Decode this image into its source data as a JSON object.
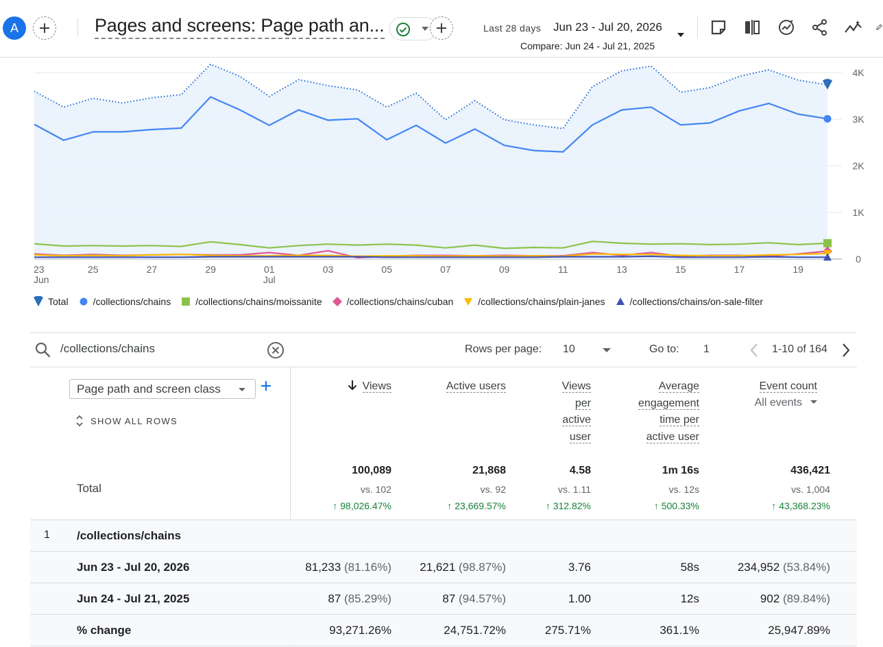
{
  "header": {
    "avatar_letter": "A",
    "report_title": "Pages and screens: Page path an...",
    "date_label": "Last 28 days",
    "date_range": "Jun 23 - Jul 20, 2026",
    "compare": "Compare: Jun 24 - Jul 21, 2025"
  },
  "chart_data": {
    "type": "line",
    "x": [
      "Jun 23",
      "Jun 24",
      "Jun 25",
      "Jun 26",
      "Jun 27",
      "Jun 28",
      "Jun 29",
      "Jun 30",
      "Jul 01",
      "Jul 02",
      "Jul 03",
      "Jul 04",
      "Jul 05",
      "Jul 06",
      "Jul 07",
      "Jul 08",
      "Jul 09",
      "Jul 10",
      "Jul 11",
      "Jul 12",
      "Jul 13",
      "Jul 14",
      "Jul 15",
      "Jul 16",
      "Jul 17",
      "Jul 18",
      "Jul 19",
      "Jul 20"
    ],
    "x_tick_labels": [
      {
        "label": "23",
        "sub": "Jun",
        "index": 0
      },
      {
        "label": "25",
        "sub": "",
        "index": 2
      },
      {
        "label": "27",
        "sub": "",
        "index": 4
      },
      {
        "label": "29",
        "sub": "",
        "index": 6
      },
      {
        "label": "01",
        "sub": "Jul",
        "index": 8
      },
      {
        "label": "03",
        "sub": "",
        "index": 10
      },
      {
        "label": "05",
        "sub": "",
        "index": 12
      },
      {
        "label": "07",
        "sub": "",
        "index": 14
      },
      {
        "label": "09",
        "sub": "",
        "index": 16
      },
      {
        "label": "11",
        "sub": "",
        "index": 18
      },
      {
        "label": "13",
        "sub": "",
        "index": 20
      },
      {
        "label": "15",
        "sub": "",
        "index": 22
      },
      {
        "label": "17",
        "sub": "",
        "index": 24
      },
      {
        "label": "19",
        "sub": "",
        "index": 26
      }
    ],
    "y_ticks": [
      {
        "value": 0,
        "label": "0"
      },
      {
        "value": 1000,
        "label": "1K"
      },
      {
        "value": 2000,
        "label": "2K"
      },
      {
        "value": 3000,
        "label": "3K"
      },
      {
        "value": 4000,
        "label": "4K"
      }
    ],
    "ylim": [
      0,
      4000
    ],
    "grid": true,
    "legend_position": "bottom",
    "series": [
      {
        "name": "Total",
        "color": "#1967d2",
        "style": "dotted",
        "area": true,
        "marker": "pin",
        "values": [
          3600,
          3260,
          3450,
          3350,
          3460,
          3530,
          4180,
          3920,
          3490,
          3850,
          3720,
          3630,
          3260,
          3560,
          2990,
          3400,
          2990,
          2880,
          2800,
          3700,
          4040,
          4140,
          3580,
          3680,
          3920,
          4060,
          3840,
          3740
        ]
      },
      {
        "name": "/collections/chains",
        "color": "#4285f4",
        "style": "solid",
        "marker": "circle",
        "values": [
          2890,
          2550,
          2730,
          2730,
          2780,
          2810,
          3480,
          3200,
          2870,
          3200,
          2980,
          3010,
          2560,
          2870,
          2490,
          2790,
          2440,
          2330,
          2300,
          2880,
          3200,
          3260,
          2880,
          2920,
          3180,
          3340,
          3110,
          3010
        ]
      },
      {
        "name": "/collections/chains/moissanite",
        "color": "#8bc34a",
        "style": "solid",
        "marker": "square",
        "values": [
          330,
          280,
          290,
          280,
          290,
          270,
          370,
          310,
          240,
          290,
          320,
          300,
          320,
          300,
          240,
          300,
          230,
          250,
          240,
          380,
          340,
          320,
          330,
          310,
          320,
          350,
          310,
          340
        ]
      },
      {
        "name": "/collections/chains/cuban",
        "color": "#e05697",
        "style": "solid",
        "marker": "diamond",
        "values": [
          110,
          80,
          100,
          80,
          90,
          100,
          90,
          90,
          140,
          80,
          180,
          30,
          60,
          80,
          80,
          70,
          80,
          70,
          70,
          140,
          80,
          140,
          60,
          80,
          80,
          60,
          110,
          170
        ]
      },
      {
        "name": "/collections/chains/plain-janes",
        "color": "#fbbc04",
        "style": "solid",
        "marker": "triangle-down",
        "values": [
          90,
          70,
          80,
          70,
          90,
          100,
          80,
          70,
          70,
          80,
          80,
          60,
          70,
          70,
          60,
          70,
          60,
          70,
          60,
          110,
          100,
          100,
          80,
          70,
          70,
          90,
          100,
          120
        ]
      },
      {
        "name": "/collections/chains/on-sale-filter",
        "color": "#3f51b5",
        "style": "solid",
        "marker": "triangle-up",
        "values": [
          40,
          40,
          40,
          40,
          40,
          40,
          50,
          50,
          50,
          50,
          50,
          50,
          40,
          40,
          40,
          40,
          40,
          40,
          50,
          50,
          50,
          60,
          40,
          40,
          40,
          50,
          40,
          40
        ]
      }
    ]
  },
  "search": {
    "value": "/collections/chains"
  },
  "pager": {
    "rows_label": "Rows per page:",
    "rows_value": "10",
    "goto_label": "Go to:",
    "goto_value": "1",
    "range": "1-10 of 164"
  },
  "table": {
    "dimension": "Page path and screen class",
    "show_all": "SHOW ALL ROWS",
    "total_label": "Total",
    "columns": {
      "views": "Views",
      "active_users": "Active users",
      "vpu_1": "Views",
      "vpu_2": "per",
      "vpu_3": "active",
      "vpu_4": "user",
      "aet_1": "Average",
      "aet_2": "engagement",
      "aet_3": "time per",
      "aet_4": "active user",
      "event_count": "Event count",
      "event_filter": "All events"
    },
    "totals": {
      "views": "100,089",
      "views_vs": "vs. 102",
      "views_chg": "98,026.47%",
      "users": "21,868",
      "users_vs": "vs. 92",
      "users_chg": "23,669.57%",
      "vpu": "4.58",
      "vpu_vs": "vs. 1.11",
      "vpu_chg": "312.82%",
      "aet": "1m 16s",
      "aet_vs": "vs. 12s",
      "aet_chg": "500.33%",
      "events": "436,421",
      "events_vs": "vs. 1,004",
      "events_chg": "43,368.23%"
    },
    "group": {
      "index": "1",
      "label": "/collections/chains"
    },
    "rows": [
      {
        "label": "Jun 23 - Jul 20, 2026",
        "views": "81,233",
        "views_pct": "(81.16%)",
        "users": "21,621",
        "users_pct": "(98.87%)",
        "vpu": "3.76",
        "aet": "58s",
        "events": "234,952",
        "events_pct": "(53.84%)"
      },
      {
        "label": "Jun 24 - Jul 21, 2025",
        "views": "87",
        "views_pct": "(85.29%)",
        "users": "87",
        "users_pct": "(94.57%)",
        "vpu": "1.00",
        "aet": "12s",
        "events": "902",
        "events_pct": "(89.84%)"
      },
      {
        "label": "% change",
        "views": "93,271.26%",
        "views_pct": "",
        "users": "24,751.72%",
        "users_pct": "",
        "vpu": "275.71%",
        "aet": "361.1%",
        "events": "25,947.89%",
        "events_pct": ""
      }
    ]
  }
}
